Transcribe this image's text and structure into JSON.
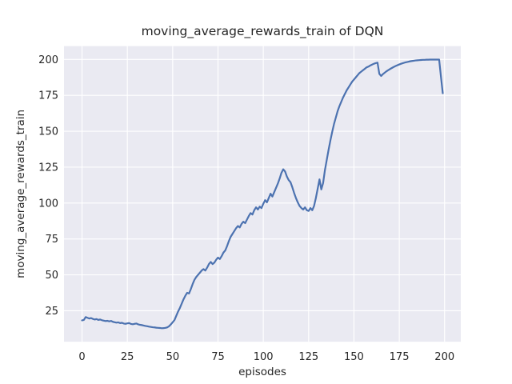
{
  "style": {
    "figure_bg": "#ffffff",
    "axes_bg": "#eaeaf2",
    "grid_color": "#ffffff",
    "line_color": "#4c72b0",
    "text_color": "#262626"
  },
  "chart_data": {
    "type": "line",
    "title": "moving_average_rewards_train of DQN",
    "xlabel": "episodes",
    "ylabel": "moving_average_rewards_train",
    "x_ticks": [
      0,
      25,
      50,
      75,
      100,
      125,
      150,
      175,
      200
    ],
    "y_ticks": [
      25,
      50,
      75,
      100,
      125,
      150,
      175,
      200
    ],
    "xlim": [
      -9.95,
      208.95
    ],
    "ylim": [
      3.4,
      209.3
    ],
    "grid": true,
    "legend_position": "none",
    "series": [
      {
        "name": "moving_average_rewards_train",
        "color": "#4c72b0",
        "x_start": 0,
        "x_step": 1,
        "y": [
          18.3,
          18.6,
          20.6,
          20.1,
          19.6,
          19.9,
          19.3,
          18.9,
          19.2,
          18.6,
          18.9,
          18.4,
          18.1,
          17.8,
          18.0,
          17.6,
          17.9,
          17.3,
          17.0,
          16.7,
          16.9,
          16.4,
          16.6,
          16.1,
          15.9,
          16.2,
          16.4,
          15.8,
          15.6,
          15.9,
          16.1,
          15.5,
          15.2,
          15.0,
          14.7,
          14.4,
          14.2,
          13.9,
          13.7,
          13.5,
          13.4,
          13.2,
          13.1,
          13.0,
          12.8,
          12.9,
          13.1,
          13.4,
          14.2,
          15.5,
          17.0,
          18.5,
          21.5,
          24.5,
          27.0,
          30.0,
          33.0,
          35.5,
          37.5,
          37.0,
          40.0,
          43.5,
          46.5,
          48.5,
          50.0,
          51.5,
          53.0,
          54.0,
          53.0,
          55.0,
          57.5,
          59.0,
          57.5,
          58.5,
          60.5,
          62.0,
          61.0,
          63.0,
          65.5,
          67.0,
          70.0,
          73.5,
          76.5,
          78.5,
          80.5,
          82.5,
          84.0,
          83.0,
          85.5,
          87.0,
          86.0,
          88.5,
          91.0,
          93.0,
          92.0,
          95.0,
          97.0,
          95.5,
          97.5,
          96.5,
          99.5,
          102.0,
          100.5,
          103.5,
          106.5,
          104.5,
          107.5,
          110.5,
          113.5,
          117.0,
          121.0,
          123.5,
          122.0,
          118.5,
          116.0,
          114.5,
          111.0,
          107.0,
          103.5,
          100.5,
          98.0,
          96.5,
          95.5,
          97.0,
          95.0,
          94.5,
          96.5,
          95.0,
          98.0,
          103.5,
          110.0,
          116.5,
          109.5,
          114.0,
          123.0,
          130.0,
          137.0,
          143.5,
          149.5,
          155.0,
          159.5,
          164.0,
          167.5,
          170.5,
          173.5,
          176.0,
          178.5,
          180.5,
          182.5,
          184.5,
          186.0,
          187.5,
          189.0,
          190.5,
          191.5,
          192.5,
          193.5,
          194.5,
          195.0,
          195.8,
          196.4,
          197.0,
          197.4,
          197.8,
          190.0,
          188.5,
          189.8,
          190.8,
          191.8,
          192.6,
          193.4,
          194.1,
          194.8,
          195.4,
          196.0,
          196.5,
          197.0,
          197.4,
          197.8,
          198.1,
          198.4,
          198.7,
          198.9,
          199.1,
          199.3,
          199.4,
          199.5,
          199.6,
          199.7,
          199.7,
          199.8,
          199.8,
          199.9,
          199.9,
          199.9,
          199.9,
          199.9,
          199.9,
          188.0,
          176.5
        ]
      }
    ]
  }
}
